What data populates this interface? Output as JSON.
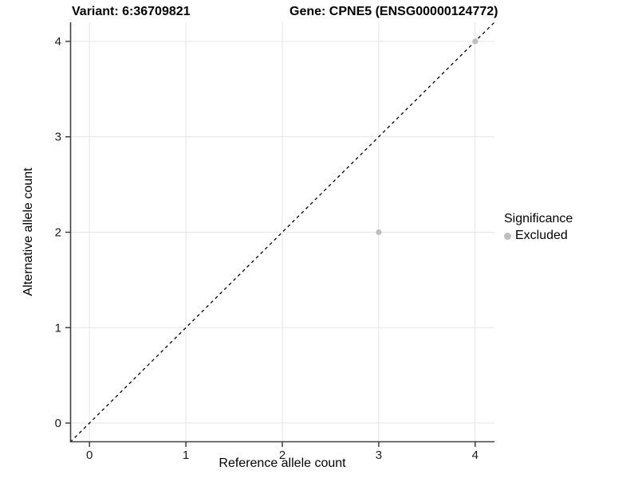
{
  "titles": {
    "variant": "Variant: 6:36709821",
    "gene": "Gene: CPNE5 (ENSG00000124772)"
  },
  "chart_data": {
    "type": "scatter",
    "title_left": "Variant: 6:36709821",
    "title_right": "Gene: CPNE5 (ENSG00000124772)",
    "xlabel": "Reference allele count",
    "ylabel": "Alternative allele count",
    "xlim": [
      -0.2,
      4.2
    ],
    "ylim": [
      -0.2,
      4.2
    ],
    "xticks": [
      0,
      1,
      2,
      3,
      4
    ],
    "yticks": [
      0,
      1,
      2,
      3,
      4
    ],
    "grid": true,
    "series": [
      {
        "name": "Excluded",
        "color": "#bebebe",
        "points": [
          [
            3,
            2
          ],
          [
            4,
            4
          ]
        ]
      }
    ],
    "reference_line": {
      "type": "abline",
      "slope": 1,
      "intercept": 0,
      "style": "dashed",
      "color": "#000000"
    },
    "legend": {
      "title": "Significance",
      "position": "right",
      "entries": [
        {
          "label": "Excluded",
          "color": "#bebebe"
        }
      ]
    }
  },
  "colors": {
    "background": "#ffffff",
    "gridline": "#e5e5e5",
    "axis_line": "#404040",
    "tick_mark": "#333333",
    "tick_text": "#1a1a1a",
    "point": "#bebebe"
  }
}
